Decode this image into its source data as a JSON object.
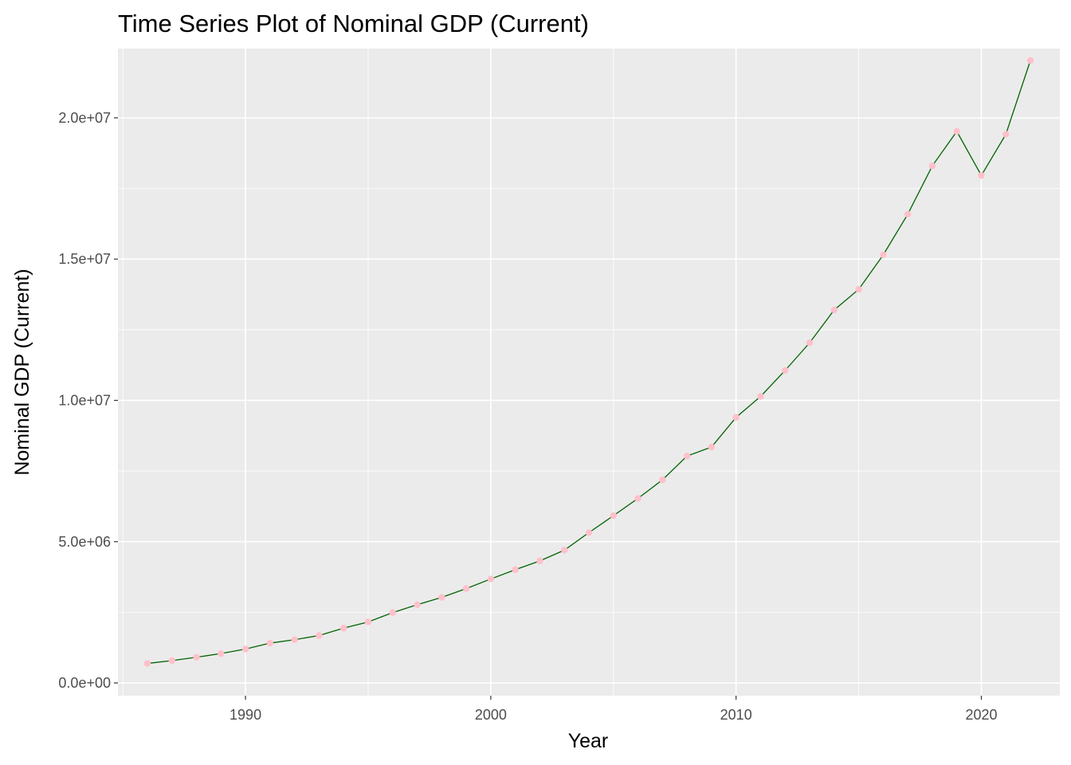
{
  "chart_data": {
    "type": "line",
    "title": "Time Series Plot of Nominal GDP (Current)",
    "xlabel": "Year",
    "ylabel": "Nominal GDP (Current)",
    "xlim": [
      1984.8,
      2023.2
    ],
    "ylim": [
      -450000,
      22450000
    ],
    "x_ticks": [
      1990,
      2000,
      2010,
      2020
    ],
    "x_tick_labels": [
      "1990",
      "2000",
      "2010",
      "2020"
    ],
    "y_ticks": [
      0,
      5000000,
      10000000,
      15000000,
      20000000
    ],
    "y_tick_labels": [
      "0.0e+00",
      "5.0e+06",
      "1.0e+07",
      "1.5e+07",
      "2.0e+07"
    ],
    "grid": true,
    "legend": "none",
    "colors": {
      "panel_background": "#ebebeb",
      "grid": "#ffffff",
      "line": "#006400",
      "point": "#ffc0cb"
    },
    "series": [
      {
        "x": [
          1986,
          1987,
          1988,
          1989,
          1990,
          1991,
          1992,
          1993,
          1994,
          1995,
          1996,
          1997,
          1998,
          1999,
          2000,
          2001,
          2002,
          2003,
          2004,
          2005,
          2006,
          2007,
          2008,
          2009,
          2010,
          2011,
          2012,
          2013,
          2014,
          2015,
          2016,
          2017,
          2018,
          2019,
          2020,
          2021,
          2022
        ],
        "values": [
          690000,
          790000,
          910000,
          1040000,
          1200000,
          1410000,
          1530000,
          1680000,
          1940000,
          2160000,
          2490000,
          2770000,
          3030000,
          3340000,
          3680000,
          4010000,
          4320000,
          4700000,
          5320000,
          5920000,
          6530000,
          7190000,
          8030000,
          8350000,
          9400000,
          10140000,
          11060000,
          12040000,
          13200000,
          13930000,
          15150000,
          16590000,
          18300000,
          19520000,
          17960000,
          19420000,
          22030000
        ]
      }
    ]
  }
}
